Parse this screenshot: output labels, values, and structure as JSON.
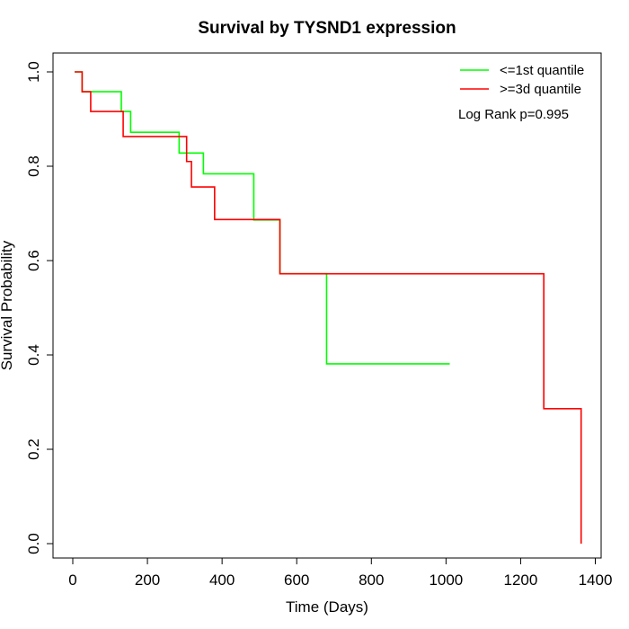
{
  "chart_data": {
    "type": "line",
    "title": "Survival by TYSND1 expression",
    "xlabel": "Time (Days)",
    "ylabel": "Survival Probability",
    "xlim": [
      0,
      1400
    ],
    "ylim": [
      0,
      1.0
    ],
    "xticks": [
      "0",
      "200",
      "400",
      "600",
      "800",
      "1000",
      "1200",
      "1400"
    ],
    "yticks": [
      "0.0",
      "0.2",
      "0.4",
      "0.6",
      "0.8",
      "1.0"
    ],
    "legend_position": "top-right",
    "annotation": "Log Rank p=0.995",
    "series": [
      {
        "name": "<=1st quantile",
        "color": "#00ff00",
        "steps": [
          [
            5,
            1.0
          ],
          [
            25,
            0.958
          ],
          [
            130,
            0.916
          ],
          [
            155,
            0.872
          ],
          [
            285,
            0.828
          ],
          [
            350,
            0.784
          ],
          [
            485,
            0.686
          ],
          [
            555,
            0.572
          ],
          [
            680,
            0.381
          ],
          [
            1010,
            0.381
          ]
        ]
      },
      {
        "name": ">=3d quantile",
        "color": "#ff0000",
        "steps": [
          [
            5,
            1.0
          ],
          [
            25,
            0.958
          ],
          [
            48,
            0.916
          ],
          [
            135,
            0.863
          ],
          [
            305,
            0.81
          ],
          [
            318,
            0.756
          ],
          [
            380,
            0.687
          ],
          [
            555,
            0.572
          ],
          [
            1262,
            0.286
          ],
          [
            1362,
            0.0
          ]
        ]
      }
    ]
  }
}
